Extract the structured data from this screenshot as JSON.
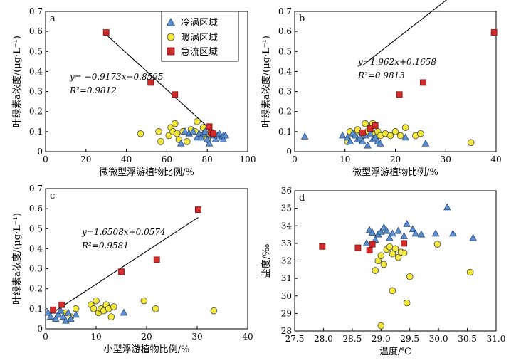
{
  "legend": {
    "items": [
      {
        "label": "冷涡区域",
        "marker": "triangle",
        "color": "#5b8fd0"
      },
      {
        "label": "暖涡区域",
        "marker": "circle",
        "color": "#f2e83a"
      },
      {
        "label": "急流区域",
        "marker": "square",
        "color": "#d42a2a"
      }
    ]
  },
  "colors": {
    "cold": "#5b8fd0",
    "warm": "#f2e83a",
    "jet": "#d42a2a",
    "line": "#000000"
  },
  "chart_data": [
    {
      "type": "scatter",
      "panel": "a",
      "xlabel": "微微型浮游植物比例/%",
      "ylabel": "叶绿素a浓度/(μg·L⁻¹)",
      "xlim": [
        0,
        100
      ],
      "ylim": [
        0,
        0.7
      ],
      "xticks": [
        "0",
        "20",
        "40",
        "60",
        "80",
        "100"
      ],
      "yticks": [
        "0",
        "0.1",
        "0.2",
        "0.3",
        "0.4",
        "0.5",
        "0.6",
        "0.7"
      ],
      "equation": "y= −0.9173x+0.8595",
      "r2": "R²=0.9812",
      "fit": {
        "slope": -0.9173,
        "intercept": 0.8595,
        "x_range": [
          30,
          86
        ]
      },
      "series": [
        {
          "group": "cold",
          "points": [
            [
              67,
              0.04
            ],
            [
              69,
              0.1
            ],
            [
              71,
              0.09
            ],
            [
              73,
              0.1
            ],
            [
              75,
              0.07
            ],
            [
              76,
              0.09
            ],
            [
              77,
              0.07
            ],
            [
              78,
              0.09
            ],
            [
              79,
              0.1
            ],
            [
              80,
              0.06
            ],
            [
              81,
              0.04
            ],
            [
              82,
              0.08
            ],
            [
              83,
              0.09
            ],
            [
              84,
              0.06
            ],
            [
              85,
              0.08
            ],
            [
              86,
              0.09
            ],
            [
              87,
              0.07
            ],
            [
              88,
              0.08
            ],
            [
              88,
              0.06
            ],
            [
              89,
              0.08
            ]
          ]
        },
        {
          "group": "warm",
          "points": [
            [
              47,
              0.09
            ],
            [
              56,
              0.1
            ],
            [
              57,
              0.05
            ],
            [
              61,
              0.08
            ],
            [
              62,
              0.12
            ],
            [
              63,
              0.1
            ],
            [
              64,
              0.14
            ],
            [
              65,
              0.09
            ],
            [
              66,
              0.06
            ],
            [
              68,
              0.1
            ],
            [
              70,
              0.05
            ],
            [
              72,
              0.11
            ],
            [
              74,
              0.1
            ],
            [
              75,
              0.15
            ],
            [
              78,
              0.12
            ],
            [
              79,
              0.08
            ],
            [
              80,
              0.06
            ],
            [
              81,
              0.09
            ]
          ]
        },
        {
          "group": "jet",
          "points": [
            [
              30,
              0.595
            ],
            [
              52,
              0.345
            ],
            [
              64,
              0.285
            ],
            [
              81,
              0.125
            ],
            [
              82,
              0.095
            ],
            [
              83,
              0.09
            ]
          ]
        }
      ]
    },
    {
      "type": "scatter",
      "panel": "b",
      "xlabel": "微型浮游植物比例/%",
      "ylabel": "叶绿素a浓度/(μg·L⁻¹)",
      "xlim": [
        0,
        40
      ],
      "ylim": [
        0,
        0.7
      ],
      "xticks": [
        "0",
        "10",
        "20",
        "30",
        "40"
      ],
      "yticks": [
        "0",
        "0.1",
        "0.2",
        "0.3",
        "0.4",
        "0.5",
        "0.6",
        "0.7"
      ],
      "equation": "y=1.962x+0.1658",
      "r2": "R²=0.9813",
      "fit": {
        "slope": 1.962,
        "intercept": 0.1658,
        "x_range": [
          13.5,
          39.6
        ]
      },
      "series": [
        {
          "group": "cold",
          "points": [
            [
              2,
              0.075
            ],
            [
              9.5,
              0.08
            ],
            [
              10.5,
              0.07
            ],
            [
              11,
              0.05
            ],
            [
              11.5,
              0.09
            ],
            [
              12,
              0.08
            ],
            [
              12.5,
              0.06
            ],
            [
              13,
              0.07
            ],
            [
              13.5,
              0.05
            ],
            [
              14,
              0.08
            ],
            [
              14.5,
              0.03
            ],
            [
              15,
              0.09
            ],
            [
              15.5,
              0.06
            ],
            [
              16,
              0.07
            ],
            [
              16.5,
              0.05
            ],
            [
              17,
              0.04
            ],
            [
              22,
              0.07
            ],
            [
              26,
              0.04
            ]
          ]
        },
        {
          "group": "warm",
          "points": [
            [
              10.5,
              0.05
            ],
            [
              11,
              0.1
            ],
            [
              12,
              0.09
            ],
            [
              12.5,
              0.11
            ],
            [
              13,
              0.06
            ],
            [
              13.5,
              0.08
            ],
            [
              14,
              0.14
            ],
            [
              14.5,
              0.1
            ],
            [
              15,
              0.12
            ],
            [
              15.5,
              0.14
            ],
            [
              16,
              0.09
            ],
            [
              16.5,
              0.1
            ],
            [
              17,
              0.08
            ],
            [
              18,
              0.09
            ],
            [
              19,
              0.08
            ],
            [
              20,
              0.1
            ],
            [
              21,
              0.08
            ],
            [
              22,
              0.12
            ],
            [
              24,
              0.08
            ],
            [
              25,
              0.09
            ],
            [
              35,
              0.045
            ]
          ]
        },
        {
          "group": "jet",
          "points": [
            [
              13.5,
              0.095
            ],
            [
              15,
              0.115
            ],
            [
              16,
              0.13
            ],
            [
              20.8,
              0.285
            ],
            [
              25.5,
              0.345
            ],
            [
              39.6,
              0.595
            ]
          ]
        }
      ]
    },
    {
      "type": "scatter",
      "panel": "c",
      "xlabel": "小型浮游植物比例/%",
      "ylabel": "叶绿素a浓度/(μg·L⁻¹)",
      "xlim": [
        0,
        40
      ],
      "ylim": [
        0,
        0.7
      ],
      "xticks": [
        "0",
        "10",
        "20",
        "30",
        "40"
      ],
      "yticks": [
        "0",
        "0.1",
        "0.2",
        "0.3",
        "0.4",
        "0.5",
        "0.6",
        "0.7"
      ],
      "equation": "y=1.6508x+0.0574",
      "r2": "R²=0.9581",
      "fit": {
        "slope": 1.6508,
        "intercept": 0.0574,
        "x_range": [
          0.5,
          30.2
        ]
      },
      "series": [
        {
          "group": "cold",
          "points": [
            [
              0.5,
              0.08
            ],
            [
              1,
              0.06
            ],
            [
              1.5,
              0.09
            ],
            [
              2,
              0.05
            ],
            [
              2.5,
              0.07
            ],
            [
              3,
              0.09
            ],
            [
              3.5,
              0.06
            ],
            [
              4,
              0.04
            ],
            [
              4.5,
              0.08
            ],
            [
              5,
              0.05
            ],
            [
              6,
              0.07
            ],
            [
              15.5,
              0.08
            ]
          ]
        },
        {
          "group": "warm",
          "points": [
            [
              4,
              0.08
            ],
            [
              5,
              0.06
            ],
            [
              6,
              0.1
            ],
            [
              9,
              0.12
            ],
            [
              9.5,
              0.1
            ],
            [
              10,
              0.14
            ],
            [
              10.5,
              0.08
            ],
            [
              11,
              0.1
            ],
            [
              11.5,
              0.09
            ],
            [
              12,
              0.12
            ],
            [
              12.5,
              0.1
            ],
            [
              13,
              0.06
            ],
            [
              13.5,
              0.11
            ],
            [
              19.5,
              0.14
            ],
            [
              21.8,
              0.1
            ],
            [
              33.3,
              0.09
            ]
          ]
        },
        {
          "group": "jet",
          "points": [
            [
              1.5,
              0.095
            ],
            [
              3.2,
              0.12
            ],
            [
              15,
              0.285
            ],
            [
              22,
              0.345
            ],
            [
              30.2,
              0.595
            ]
          ]
        }
      ]
    },
    {
      "type": "scatter",
      "panel": "d",
      "xlabel": "温度/℃",
      "ylabel": "盐度/‰",
      "xlim": [
        27.5,
        31.0
      ],
      "ylim": [
        28,
        36
      ],
      "xticks": [
        "27.5",
        "28.0",
        "28.5",
        "29.0",
        "29.5",
        "30.0",
        "30.5",
        "31.0"
      ],
      "yticks": [
        "28",
        "29",
        "30",
        "31",
        "32",
        "33",
        "34",
        "35",
        "36"
      ],
      "series": [
        {
          "group": "cold",
          "points": [
            [
              28.75,
              33.0
            ],
            [
              28.8,
              33.75
            ],
            [
              28.85,
              33.6
            ],
            [
              28.9,
              33.2
            ],
            [
              28.95,
              33.5
            ],
            [
              29.0,
              33.65
            ],
            [
              29.05,
              33.9
            ],
            [
              29.1,
              33.7
            ],
            [
              29.15,
              33.3
            ],
            [
              29.2,
              33.55
            ],
            [
              29.3,
              33.7
            ],
            [
              29.4,
              33.4
            ],
            [
              29.45,
              34.1
            ],
            [
              29.55,
              33.8
            ],
            [
              29.6,
              33.55
            ],
            [
              29.7,
              33.5
            ],
            [
              29.95,
              33.55
            ],
            [
              30.15,
              35.05
            ],
            [
              30.25,
              33.55
            ],
            [
              30.6,
              33.3
            ]
          ]
        },
        {
          "group": "warm",
          "points": [
            [
              28.9,
              31.45
            ],
            [
              28.95,
              32.0
            ],
            [
              29.0,
              32.3
            ],
            [
              29.0,
              28.3
            ],
            [
              29.05,
              31.8
            ],
            [
              29.1,
              32.65
            ],
            [
              29.15,
              32.8
            ],
            [
              29.2,
              32.4
            ],
            [
              29.2,
              30.3
            ],
            [
              29.25,
              32.7
            ],
            [
              29.3,
              32.2
            ],
            [
              29.35,
              32.5
            ],
            [
              29.4,
              32.45
            ],
            [
              29.45,
              29.6
            ],
            [
              29.5,
              31.1
            ],
            [
              29.98,
              32.95
            ],
            [
              30.55,
              31.35
            ]
          ]
        },
        {
          "group": "jet",
          "points": [
            [
              27.98,
              32.82
            ],
            [
              28.6,
              32.75
            ],
            [
              28.8,
              32.6
            ],
            [
              28.85,
              32.95
            ],
            [
              29.4,
              33.0
            ]
          ]
        }
      ]
    }
  ]
}
